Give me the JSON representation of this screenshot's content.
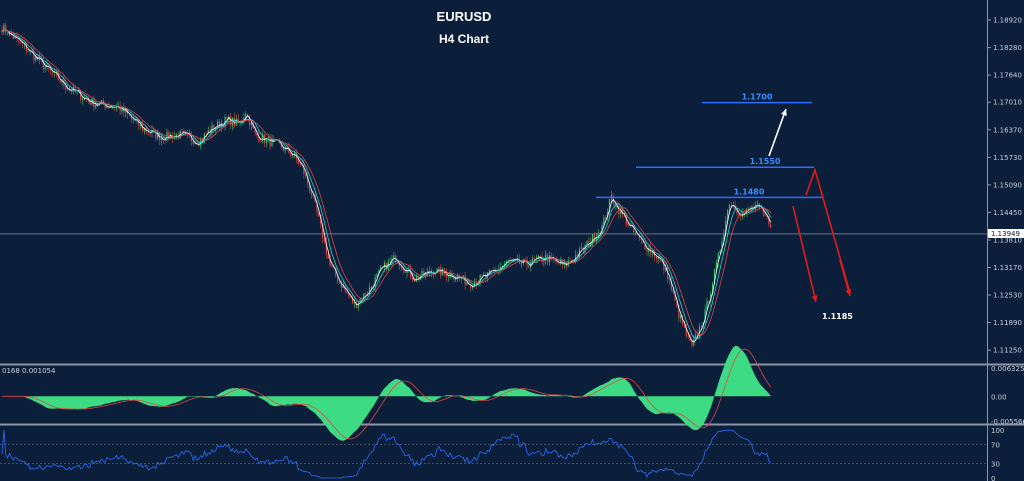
{
  "chart_data": {
    "type": "candlestick",
    "symbol": "EURUSD",
    "timeframe": "H4 Chart",
    "current_price": "1.13949",
    "price_ticks": [
      "1.18920",
      "1.18280",
      "1.17640",
      "1.17010",
      "1.16370",
      "1.15730",
      "1.15090",
      "1.14450",
      "1.13810",
      "1.13170",
      "1.12530",
      "1.11890",
      "1.11250"
    ],
    "ylim": [
      1.1102,
      1.192
    ],
    "levels": [
      {
        "label": "1.1700",
        "price": 1.17
      },
      {
        "label": "1.1550",
        "price": 1.155
      },
      {
        "label": "1.1480",
        "price": 1.148
      }
    ],
    "target_label": "1.1185",
    "price_path_keypoints": [
      [
        0,
        1.1875
      ],
      [
        12,
        1.183
      ],
      [
        25,
        1.1775
      ],
      [
        35,
        1.1735
      ],
      [
        48,
        1.17
      ],
      [
        62,
        1.169
      ],
      [
        75,
        1.164
      ],
      [
        85,
        1.162
      ],
      [
        95,
        1.1625
      ],
      [
        105,
        1.161
      ],
      [
        112,
        1.164
      ],
      [
        120,
        1.166
      ],
      [
        127,
        1.165
      ],
      [
        130,
        1.168
      ],
      [
        135,
        1.1625
      ],
      [
        140,
        1.1615
      ],
      [
        148,
        1.16
      ],
      [
        155,
        1.158
      ],
      [
        160,
        1.155
      ],
      [
        165,
        1.149
      ],
      [
        170,
        1.141
      ],
      [
        175,
        1.132
      ],
      [
        182,
        1.127
      ],
      [
        188,
        1.123
      ],
      [
        195,
        1.126
      ],
      [
        202,
        1.131
      ],
      [
        210,
        1.134
      ],
      [
        220,
        1.129
      ],
      [
        230,
        1.131
      ],
      [
        240,
        1.13
      ],
      [
        250,
        1.128
      ],
      [
        260,
        1.13
      ],
      [
        270,
        1.133
      ],
      [
        280,
        1.1325
      ],
      [
        290,
        1.134
      ],
      [
        300,
        1.132
      ],
      [
        310,
        1.136
      ],
      [
        320,
        1.141
      ],
      [
        325,
        1.148
      ],
      [
        332,
        1.143
      ],
      [
        340,
        1.138
      ],
      [
        350,
        1.134
      ],
      [
        355,
        1.13
      ],
      [
        360,
        1.122
      ],
      [
        365,
        1.116
      ],
      [
        368,
        1.113
      ],
      [
        375,
        1.121
      ],
      [
        382,
        1.134
      ],
      [
        388,
        1.147
      ],
      [
        395,
        1.144
      ],
      [
        402,
        1.146
      ],
      [
        410,
        1.142
      ]
    ],
    "indicator_macd": {
      "label": "0168 0.001054",
      "ticks": [
        "0.006325",
        "0.00",
        "-0.005566"
      ],
      "ylim": [
        -0.0058,
        0.0066
      ]
    },
    "indicator_rsi": {
      "ticks": [
        "100",
        "70",
        "30",
        "0"
      ],
      "ylim": [
        0,
        100
      ]
    }
  }
}
